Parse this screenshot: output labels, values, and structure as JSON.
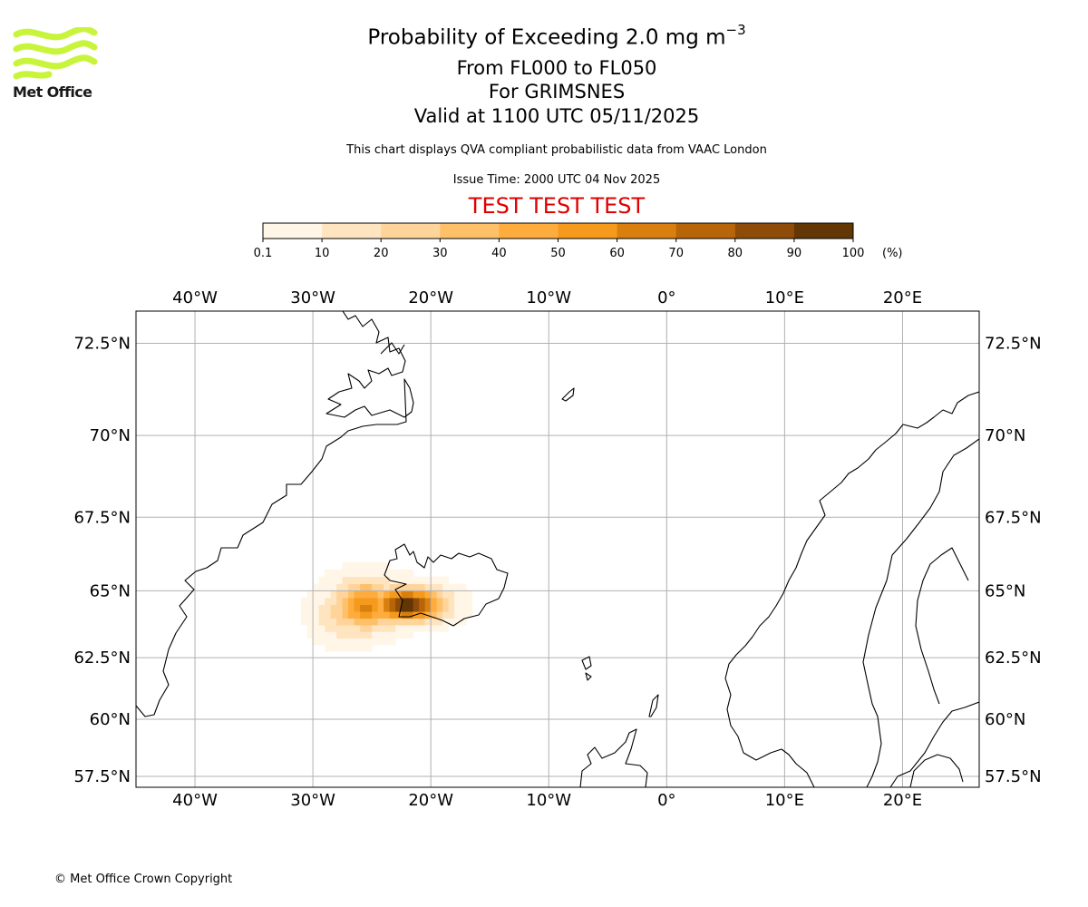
{
  "header": {
    "logo_text": "Met Office",
    "logo_color": "#c8f53c",
    "title_main": "Probability of Exceeding 2.0 mg m",
    "title_sup": "−3",
    "level_range": "From FL000 to FL050",
    "volcano": "For GRIMSNES",
    "valid_time": "Valid at 1100 UTC 05/11/2025",
    "description": "This chart displays QVA compliant probabilistic data from VAAC London",
    "issue_time": "Issue Time: 2000 UTC 04 Nov 2025",
    "test_banner": "TEST TEST TEST",
    "test_banner_color": "#e00000"
  },
  "colorbar": {
    "ticks": [
      "0.1",
      "10",
      "20",
      "30",
      "40",
      "50",
      "60",
      "70",
      "80",
      "90",
      "100"
    ],
    "colors": [
      "#fff6e8",
      "#ffe4c0",
      "#ffd49b",
      "#ffc06a",
      "#ffac3e",
      "#f59a1c",
      "#d97f0d",
      "#b8650a",
      "#8f4c08",
      "#633705"
    ],
    "unit": "(%)"
  },
  "map": {
    "lon_range": [
      -45,
      26.5
    ],
    "lat_range": [
      57,
      73.3
    ],
    "lon_ticks": [
      {
        "value": -40,
        "label": "40°W"
      },
      {
        "value": -30,
        "label": "30°W"
      },
      {
        "value": -20,
        "label": "20°W"
      },
      {
        "value": -10,
        "label": "10°W"
      },
      {
        "value": 0,
        "label": "0°"
      },
      {
        "value": 10,
        "label": "10°E"
      },
      {
        "value": 20,
        "label": "20°E"
      }
    ],
    "lat_ticks": [
      {
        "value": 72.5,
        "label": "72.5°N"
      },
      {
        "value": 70,
        "label": "70°N"
      },
      {
        "value": 67.5,
        "label": "67.5°N"
      },
      {
        "value": 65,
        "label": "65°N"
      },
      {
        "value": 62.5,
        "label": "62.5°N"
      },
      {
        "value": 60,
        "label": "60°N"
      },
      {
        "value": 57.5,
        "label": "57.5°N"
      }
    ],
    "grid": true,
    "grid_color": "#b0b0b0",
    "coastline_color": "#000000",
    "probability_field": [
      {
        "lon": -22.0,
        "lat": 64.5,
        "sigma_lon": 2.8,
        "sigma_lat": 0.55,
        "peak": 100
      },
      {
        "lon": -25.5,
        "lat": 64.45,
        "sigma_lon": 2.6,
        "sigma_lat": 0.8,
        "peak": 62
      },
      {
        "lon": -27.0,
        "lat": 64.2,
        "sigma_lon": 2.3,
        "sigma_lat": 0.9,
        "peak": 30
      }
    ]
  },
  "footer": {
    "copyright": "© Met Office Crown Copyright"
  }
}
